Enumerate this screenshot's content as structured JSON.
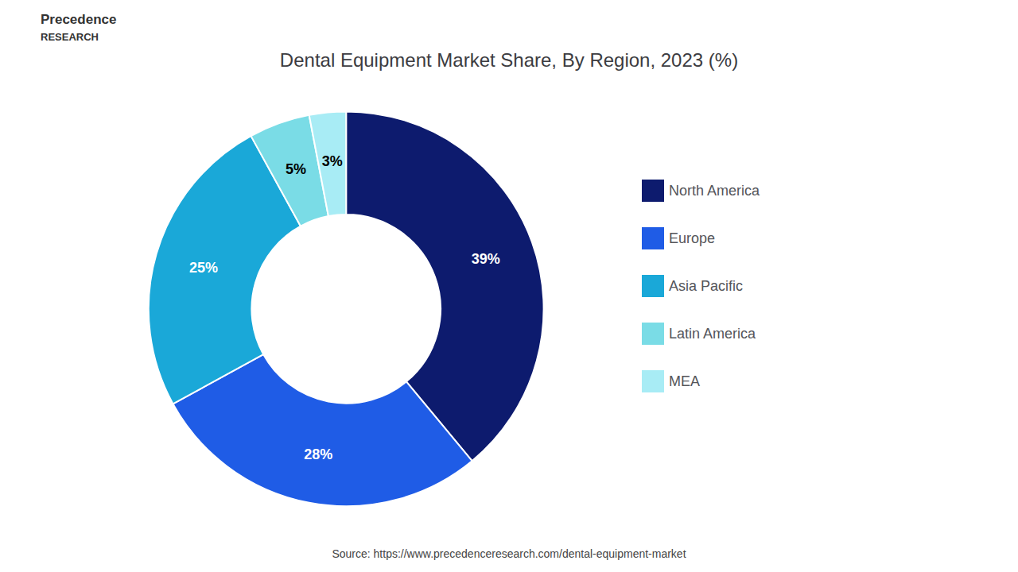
{
  "chart_data": {
    "type": "pie",
    "title": "Dental Equipment Market Share, By Region, 2023 (%)",
    "categories": [
      "North America",
      "Europe",
      "Asia Pacific",
      "Latin America",
      "MEA"
    ],
    "values": [
      39,
      28,
      25,
      5,
      3
    ],
    "value_labels": [
      "39%",
      "28%",
      "25%",
      "5%",
      "3%"
    ],
    "colors": [
      "#0d1b6e",
      "#1f5ce6",
      "#1aa8d8",
      "#7adce6",
      "#a8ecf5"
    ],
    "data_labels": true,
    "legend": "right",
    "annotations": [
      "Precedence",
      "RESEARCH",
      "Source: https://www.precedenceresearch.com/dental-equipment-market"
    ]
  }
}
